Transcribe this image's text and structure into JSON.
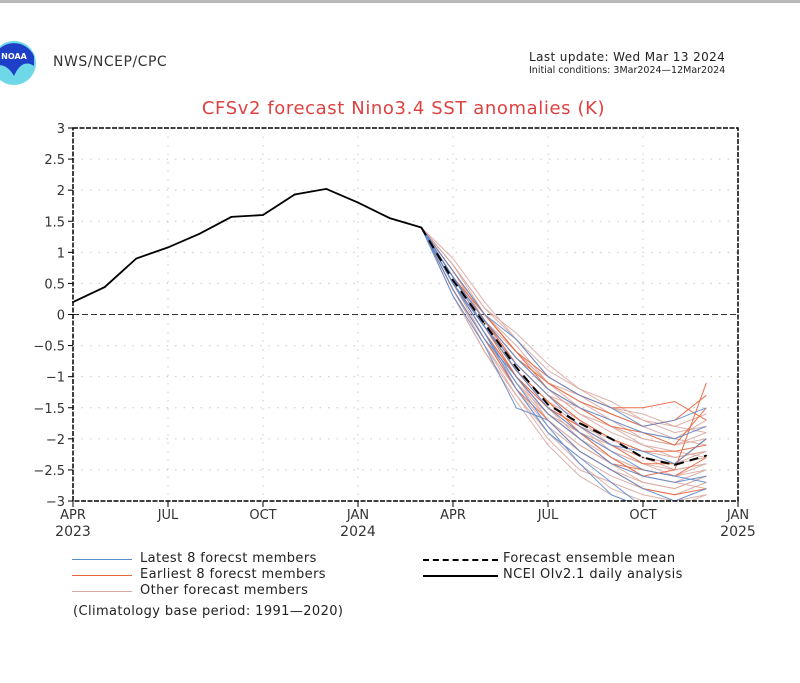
{
  "header": {
    "org": "NWS/NCEP/CPC",
    "last_update": "Last update: Wed Mar 13 2024",
    "initial_conditions": "Initial conditions: 3Mar2024—12Mar2024",
    "logo_text": "NOAA"
  },
  "chart_data": {
    "type": "line",
    "title": "CFSv2 forecast Nino3.4 SST anomalies (K)",
    "xlabel": "",
    "ylabel": "",
    "ylim": [
      -3,
      3
    ],
    "yticks": [
      "3",
      "2.5",
      "2",
      "1.5",
      "1",
      "0.5",
      "0",
      "-0.5",
      "-1",
      "-1.5",
      "-2",
      "-2.5",
      "-3"
    ],
    "xticks": [
      {
        "month": 0,
        "label": "APR",
        "year": "2023"
      },
      {
        "month": 3,
        "label": "JUL",
        "year": ""
      },
      {
        "month": 6,
        "label": "OCT",
        "year": ""
      },
      {
        "month": 9,
        "label": "JAN",
        "year": "2024"
      },
      {
        "month": 12,
        "label": "APR",
        "year": ""
      },
      {
        "month": 15,
        "label": "JUL",
        "year": ""
      },
      {
        "month": 18,
        "label": "OCT",
        "year": ""
      },
      {
        "month": 21,
        "label": "JAN",
        "year": "2025"
      }
    ],
    "x_unit": "months since Apr 2023",
    "grid": true,
    "reference_line": 0,
    "series": [
      {
        "name": "NCEI OIv2.1 daily analysis",
        "color": "#000000",
        "style": "solid",
        "x": [
          0,
          1,
          2,
          3,
          4,
          5,
          6,
          7,
          8,
          9,
          10,
          11
        ],
        "values": [
          0.2,
          0.44,
          0.9,
          1.08,
          1.3,
          1.57,
          1.6,
          1.93,
          2.02,
          1.8,
          1.55,
          1.4
        ]
      },
      {
        "name": "Forecast ensemble mean",
        "color": "#000000",
        "style": "dashed",
        "x": [
          11,
          12,
          13,
          14,
          15,
          16,
          17,
          18,
          19,
          20
        ],
        "values": [
          1.4,
          0.55,
          -0.15,
          -0.85,
          -1.45,
          -1.75,
          -2.0,
          -2.3,
          -2.42,
          -2.27
        ]
      },
      {
        "name": "Latest 8 forecst members",
        "color": "#5b8bd0",
        "style": "solid",
        "x": [
          11,
          12,
          13,
          14,
          15,
          16,
          17,
          18,
          19,
          20
        ],
        "members": [
          [
            1.4,
            0.5,
            -0.3,
            -1.2,
            -1.9,
            -2.3,
            -2.7,
            -3.1,
            -3.3,
            -3.3
          ],
          [
            1.4,
            0.6,
            -0.1,
            -0.7,
            -1.2,
            -1.5,
            -1.7,
            -1.9,
            -2.0,
            -1.8
          ],
          [
            1.4,
            0.4,
            -0.4,
            -1.0,
            -1.6,
            -2.0,
            -2.4,
            -2.6,
            -2.7,
            -2.6
          ],
          [
            1.4,
            0.7,
            0.0,
            -0.4,
            -1.0,
            -1.3,
            -1.5,
            -1.8,
            -1.7,
            -1.5
          ],
          [
            1.4,
            0.5,
            -0.2,
            -0.9,
            -1.5,
            -1.9,
            -2.2,
            -2.5,
            -2.6,
            -2.7
          ],
          [
            1.4,
            0.3,
            -0.5,
            -1.5,
            -1.7,
            -2.2,
            -2.5,
            -2.8,
            -3.0,
            -2.8
          ],
          [
            1.4,
            0.6,
            -0.2,
            -0.8,
            -1.3,
            -1.8,
            -2.1,
            -2.2,
            -2.4,
            -2.0
          ],
          [
            1.4,
            0.5,
            -0.3,
            -1.1,
            -1.8,
            -2.4,
            -2.9,
            -3.1,
            -3.3,
            -3.2
          ]
        ]
      },
      {
        "name": "Earliest 8 forecst members",
        "color": "#e8643c",
        "style": "solid",
        "x": [
          11,
          12,
          13,
          14,
          15,
          16,
          17,
          18,
          19,
          20
        ],
        "members": [
          [
            1.4,
            0.6,
            -0.1,
            -0.7,
            -1.1,
            -1.4,
            -1.6,
            -1.8,
            -1.7,
            -1.3
          ],
          [
            1.4,
            0.5,
            -0.2,
            -0.9,
            -1.4,
            -1.9,
            -2.3,
            -2.6,
            -2.5,
            -1.1
          ],
          [
            1.4,
            0.7,
            0.0,
            -0.6,
            -1.0,
            -1.3,
            -1.5,
            -1.5,
            -1.4,
            -1.7
          ],
          [
            1.4,
            0.5,
            -0.3,
            -1.0,
            -1.6,
            -2.0,
            -2.4,
            -2.5,
            -2.6,
            -2.3
          ],
          [
            1.4,
            0.4,
            -0.4,
            -1.2,
            -1.7,
            -2.2,
            -2.5,
            -2.8,
            -2.9,
            -2.8
          ],
          [
            1.4,
            0.6,
            -0.1,
            -0.8,
            -1.3,
            -1.7,
            -2.0,
            -2.2,
            -2.2,
            -2.1
          ],
          [
            1.4,
            0.5,
            -0.2,
            -1.0,
            -1.5,
            -1.8,
            -2.1,
            -2.4,
            -2.4,
            -2.0
          ],
          [
            1.4,
            0.6,
            0.0,
            -0.6,
            -1.2,
            -1.5,
            -1.8,
            -1.9,
            -2.1,
            -1.5
          ]
        ]
      },
      {
        "name": "Other forecast members",
        "color": "#d9a8a0",
        "style": "solid",
        "x": [
          11,
          12,
          13,
          14,
          15,
          16,
          17,
          18,
          19,
          20
        ],
        "members": [
          [
            1.4,
            0.9,
            0.2,
            -0.4,
            -1.0,
            -1.3,
            -1.5,
            -1.6,
            -1.8,
            -1.6
          ],
          [
            1.4,
            0.8,
            0.1,
            -0.3,
            -0.8,
            -1.2,
            -1.4,
            -1.7,
            -1.9,
            -1.8
          ],
          [
            1.4,
            0.5,
            -0.3,
            -1.0,
            -1.6,
            -1.9,
            -2.1,
            -2.3,
            -2.5,
            -2.4
          ],
          [
            1.4,
            0.3,
            -0.6,
            -1.3,
            -2.0,
            -2.5,
            -2.7,
            -2.9,
            -3.0,
            -2.9
          ],
          [
            1.4,
            0.6,
            -0.1,
            -0.7,
            -1.2,
            -1.6,
            -1.9,
            -2.1,
            -2.2,
            -2.3
          ],
          [
            1.4,
            0.4,
            -0.4,
            -1.1,
            -1.7,
            -2.1,
            -2.4,
            -2.7,
            -2.8,
            -2.6
          ],
          [
            1.4,
            0.7,
            0.0,
            -0.5,
            -1.1,
            -1.4,
            -1.7,
            -2.0,
            -2.1,
            -1.9
          ],
          [
            1.4,
            0.5,
            -0.2,
            -0.9,
            -1.4,
            -1.8,
            -2.2,
            -2.4,
            -2.6,
            -2.5
          ],
          [
            1.4,
            0.6,
            -0.2,
            -0.8,
            -1.3,
            -1.5,
            -1.7,
            -1.9,
            -2.0,
            -2.1
          ],
          [
            1.4,
            0.4,
            -0.5,
            -1.2,
            -1.9,
            -2.3,
            -2.6,
            -2.8,
            -2.9,
            -2.7
          ],
          [
            1.4,
            0.8,
            0.0,
            -0.6,
            -1.1,
            -1.3,
            -1.6,
            -1.8,
            -2.0,
            -1.7
          ],
          [
            1.4,
            0.5,
            -0.3,
            -1.0,
            -1.5,
            -2.0,
            -2.3,
            -2.5,
            -2.6,
            -2.4
          ],
          [
            1.4,
            0.6,
            -0.1,
            -0.9,
            -1.4,
            -1.7,
            -2.0,
            -2.2,
            -2.3,
            -2.2
          ],
          [
            1.4,
            0.3,
            -0.6,
            -1.4,
            -2.1,
            -2.6,
            -2.9,
            -3.1,
            -3.2,
            -3.0
          ],
          [
            1.4,
            0.7,
            -0.1,
            -0.7,
            -1.2,
            -1.6,
            -1.8,
            -2.0,
            -2.1,
            -2.0
          ],
          [
            1.4,
            0.5,
            -0.4,
            -1.1,
            -1.6,
            -1.9,
            -2.3,
            -2.6,
            -2.7,
            -2.5
          ],
          [
            1.4,
            0.6,
            -0.2,
            -0.9,
            -1.5,
            -1.8,
            -2.0,
            -2.3,
            -2.4,
            -2.3
          ],
          [
            1.4,
            0.4,
            -0.4,
            -1.2,
            -1.8,
            -2.2,
            -2.5,
            -2.7,
            -2.8,
            -2.6
          ],
          [
            1.4,
            0.8,
            0.1,
            -0.4,
            -0.9,
            -1.2,
            -1.5,
            -1.7,
            -1.8,
            -1.9
          ],
          [
            1.4,
            0.5,
            -0.3,
            -1.0,
            -1.7,
            -2.1,
            -2.4,
            -2.6,
            -2.7,
            -2.8
          ],
          [
            1.4,
            0.6,
            -0.1,
            -0.8,
            -1.3,
            -1.7,
            -2.1,
            -2.3,
            -2.4,
            -2.2
          ],
          [
            1.4,
            0.4,
            -0.5,
            -1.3,
            -1.9,
            -2.4,
            -2.8,
            -3.0,
            -3.1,
            -2.9
          ],
          [
            1.4,
            0.7,
            -0.1,
            -0.6,
            -1.1,
            -1.5,
            -1.8,
            -2.1,
            -2.3,
            -2.2
          ],
          [
            1.4,
            0.5,
            -0.2,
            -0.9,
            -1.5,
            -1.9,
            -2.2,
            -2.4,
            -2.5,
            -2.4
          ]
        ]
      }
    ],
    "legend": {
      "placement": "bottom",
      "entries": [
        {
          "label": "Latest 8 forecst members",
          "color": "#5b8bd0",
          "style": "solid"
        },
        {
          "label": "Earliest 8 forecst members",
          "color": "#e8643c",
          "style": "solid"
        },
        {
          "label": "Other forecast members",
          "color": "#d9a8a0",
          "style": "solid"
        },
        {
          "label": "Forecast ensemble mean",
          "color": "#000000",
          "style": "dashed"
        },
        {
          "label": "NCEI OIv2.1 daily analysis",
          "color": "#000000",
          "style": "solid"
        }
      ],
      "note": "(Climatology base period: 1991—2020)"
    }
  }
}
